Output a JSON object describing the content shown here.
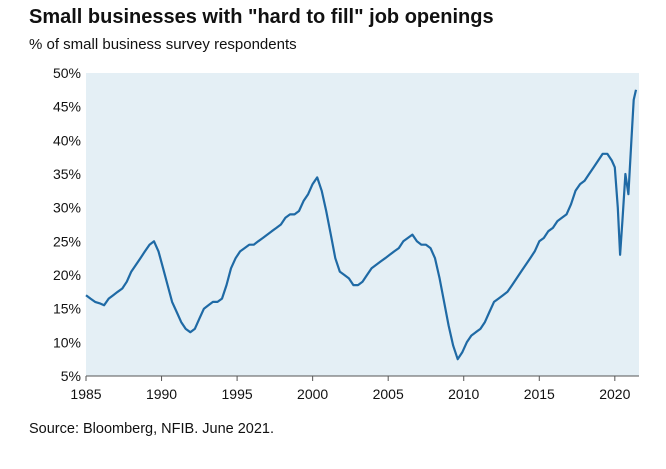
{
  "chart_data": {
    "type": "line",
    "title": "Small businesses with \"hard to fill\" job openings",
    "subtitle": "% of small business survey respondents",
    "source": "Source: Bloomberg, NFIB. June 2021.",
    "xlabel": "",
    "ylabel": "",
    "xlim": [
      1985,
      2021.6
    ],
    "ylim": [
      5,
      50
    ],
    "x_ticks": [
      {
        "value": 1985,
        "label": "1985"
      },
      {
        "value": 1990,
        "label": "1990"
      },
      {
        "value": 1995,
        "label": "1995"
      },
      {
        "value": 2000,
        "label": "2000"
      },
      {
        "value": 2005,
        "label": "2005"
      },
      {
        "value": 2010,
        "label": "2010"
      },
      {
        "value": 2015,
        "label": "2015"
      },
      {
        "value": 2020,
        "label": "2020"
      }
    ],
    "y_ticks": [
      {
        "value": 5,
        "label": "5%"
      },
      {
        "value": 10,
        "label": "10%"
      },
      {
        "value": 15,
        "label": "15%"
      },
      {
        "value": 20,
        "label": "20%"
      },
      {
        "value": 25,
        "label": "25%"
      },
      {
        "value": 30,
        "label": "30%"
      },
      {
        "value": 35,
        "label": "35%"
      },
      {
        "value": 40,
        "label": "40%"
      },
      {
        "value": 45,
        "label": "45%"
      },
      {
        "value": 50,
        "label": "50%"
      }
    ],
    "grid": false,
    "colors": {
      "line": "#1f6aa5",
      "plot_background": "#e4eff5"
    },
    "series": [
      {
        "x": [
          1985.0,
          1985.3,
          1985.6,
          1985.9,
          1986.2,
          1986.5,
          1986.8,
          1987.1,
          1987.4,
          1987.7,
          1988.0,
          1988.3,
          1988.6,
          1988.9,
          1989.2,
          1989.5,
          1989.8,
          1990.1,
          1990.4,
          1990.7,
          1991.0,
          1991.3,
          1991.6,
          1991.9,
          1992.2,
          1992.5,
          1992.8,
          1993.1,
          1993.4,
          1993.7,
          1994.0,
          1994.3,
          1994.6,
          1994.9,
          1995.2,
          1995.5,
          1995.8,
          1996.1,
          1996.4,
          1996.7,
          1997.0,
          1997.3,
          1997.6,
          1997.9,
          1998.2,
          1998.5,
          1998.8,
          1999.1,
          1999.4,
          1999.7,
          2000.0,
          2000.3,
          2000.6,
          2000.9,
          2001.2,
          2001.5,
          2001.8,
          2002.1,
          2002.4,
          2002.7,
          2003.0,
          2003.3,
          2003.6,
          2003.9,
          2004.2,
          2004.5,
          2004.8,
          2005.1,
          2005.4,
          2005.7,
          2006.0,
          2006.3,
          2006.6,
          2006.9,
          2007.2,
          2007.5,
          2007.8,
          2008.1,
          2008.4,
          2008.7,
          2009.0,
          2009.3,
          2009.6,
          2009.9,
          2010.2,
          2010.5,
          2010.8,
          2011.1,
          2011.4,
          2011.7,
          2012.0,
          2012.3,
          2012.6,
          2012.9,
          2013.2,
          2013.5,
          2013.8,
          2014.1,
          2014.4,
          2014.7,
          2015.0,
          2015.3,
          2015.6,
          2015.9,
          2016.2,
          2016.5,
          2016.8,
          2017.1,
          2017.4,
          2017.7,
          2018.0,
          2018.3,
          2018.6,
          2018.9,
          2019.2,
          2019.5,
          2019.8,
          2020.0,
          2020.2,
          2020.35,
          2020.5,
          2020.7,
          2020.9,
          2021.1,
          2021.25,
          2021.4
        ],
        "y": [
          17,
          16.5,
          16,
          15.8,
          15.5,
          16.5,
          17,
          17.5,
          18,
          19,
          20.5,
          21.5,
          22.5,
          23.5,
          24.5,
          25,
          23.5,
          21,
          18.5,
          16,
          14.5,
          13,
          12,
          11.5,
          12,
          13.5,
          15,
          15.5,
          16,
          16,
          16.5,
          18.5,
          21,
          22.5,
          23.5,
          24,
          24.5,
          24.5,
          25,
          25.5,
          26,
          26.5,
          27,
          27.5,
          28.5,
          29,
          29,
          29.5,
          31,
          32,
          33.5,
          34.5,
          32.5,
          29.5,
          26,
          22.5,
          20.5,
          20,
          19.5,
          18.5,
          18.5,
          19,
          20,
          21,
          21.5,
          22,
          22.5,
          23,
          23.5,
          24,
          25,
          25.5,
          26,
          25,
          24.5,
          24.5,
          24,
          22.5,
          19.5,
          16,
          12.5,
          9.5,
          7.5,
          8.5,
          10,
          11,
          11.5,
          12,
          13,
          14.5,
          16,
          16.5,
          17,
          17.5,
          18.5,
          19.5,
          20.5,
          21.5,
          22.5,
          23.5,
          25,
          25.5,
          26.5,
          27,
          28,
          28.5,
          29,
          30.5,
          32.5,
          33.5,
          34,
          35,
          36,
          37,
          38,
          38,
          37,
          36,
          30,
          23,
          28,
          35,
          32,
          40,
          46,
          47.5
        ]
      }
    ]
  }
}
